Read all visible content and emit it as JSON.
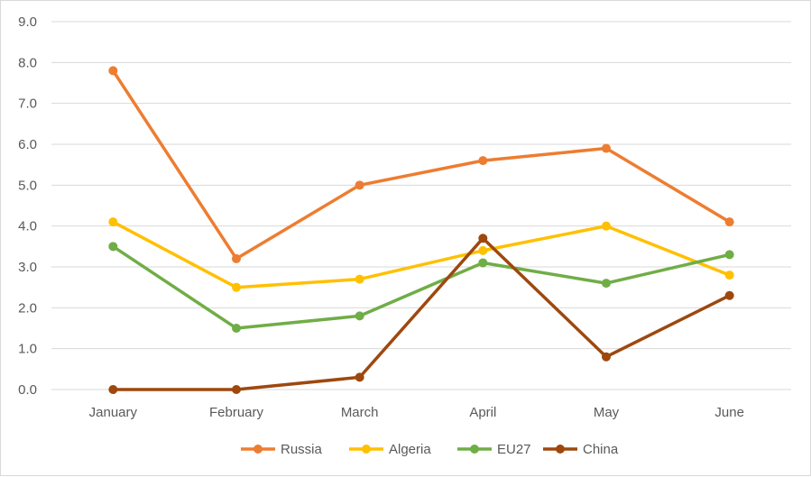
{
  "chart_data": {
    "type": "line",
    "title": "",
    "xlabel": "",
    "ylabel": "",
    "categories": [
      "January",
      "February",
      "March",
      "April",
      "May",
      "June"
    ],
    "ylim": [
      0,
      9
    ],
    "yticks": [
      "0.0",
      "1.0",
      "2.0",
      "3.0",
      "4.0",
      "5.0",
      "6.0",
      "7.0",
      "8.0",
      "9.0"
    ],
    "grid": true,
    "legend_position": "bottom",
    "series": [
      {
        "name": "Russia",
        "color": "#ED7D31",
        "values": [
          7.8,
          3.2,
          5.0,
          5.6,
          5.9,
          4.1
        ]
      },
      {
        "name": "Algeria",
        "color": "#FFC000",
        "values": [
          4.1,
          2.5,
          2.7,
          3.4,
          4.0,
          2.8
        ]
      },
      {
        "name": "EU27",
        "color": "#70AD47",
        "values": [
          3.5,
          1.5,
          1.8,
          3.1,
          2.6,
          3.3
        ]
      },
      {
        "name": "China",
        "color": "#9E480E",
        "values": [
          0.0,
          0.0,
          0.3,
          3.7,
          0.8,
          2.3
        ]
      }
    ]
  }
}
